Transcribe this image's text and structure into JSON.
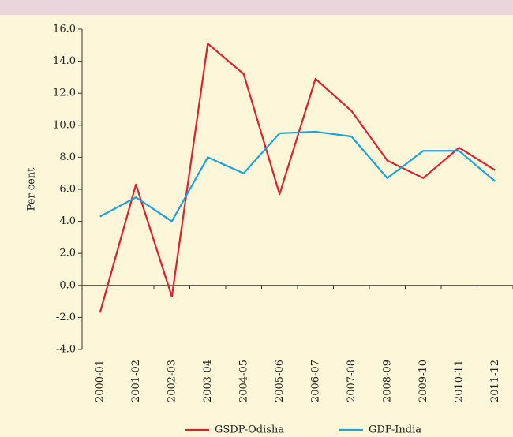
{
  "chart_data": {
    "type": "line",
    "y_label": "Per cent",
    "categories": [
      "2000-01",
      "2001-02",
      "2002-03",
      "2003-04",
      "2004-05",
      "2005-06",
      "2006-07",
      "2007-08",
      "2008-09",
      "2009-10",
      "2010-11",
      "2011-12"
    ],
    "series": [
      {
        "name": "GSDP-Odisha",
        "color": "#e0202e",
        "values": [
          -1.7,
          6.3,
          -0.7,
          15.1,
          13.2,
          5.7,
          12.9,
          10.9,
          7.8,
          6.7,
          8.6,
          7.2
        ]
      },
      {
        "name": "GDP-India",
        "color": "#1aa3dc",
        "values": [
          4.3,
          5.5,
          4.0,
          8.0,
          7.0,
          9.5,
          9.6,
          9.3,
          6.7,
          8.4,
          8.4,
          6.5
        ]
      }
    ],
    "ylim": [
      -4,
      16
    ],
    "yticks": [
      {
        "value": -4,
        "label": "-4.0"
      },
      {
        "value": -2,
        "label": "-2.0"
      },
      {
        "value": 0,
        "label": "0.0"
      },
      {
        "value": 2,
        "label": "2.0"
      },
      {
        "value": 4,
        "label": "4.0"
      },
      {
        "value": 6,
        "label": "6.0"
      },
      {
        "value": 8,
        "label": "8.0"
      },
      {
        "value": 10,
        "label": "10.0"
      },
      {
        "value": 12,
        "label": "12.0"
      },
      {
        "value": 14,
        "label": "14.0"
      },
      {
        "value": 16,
        "label": "16.0"
      }
    ],
    "legend": "bottom"
  }
}
